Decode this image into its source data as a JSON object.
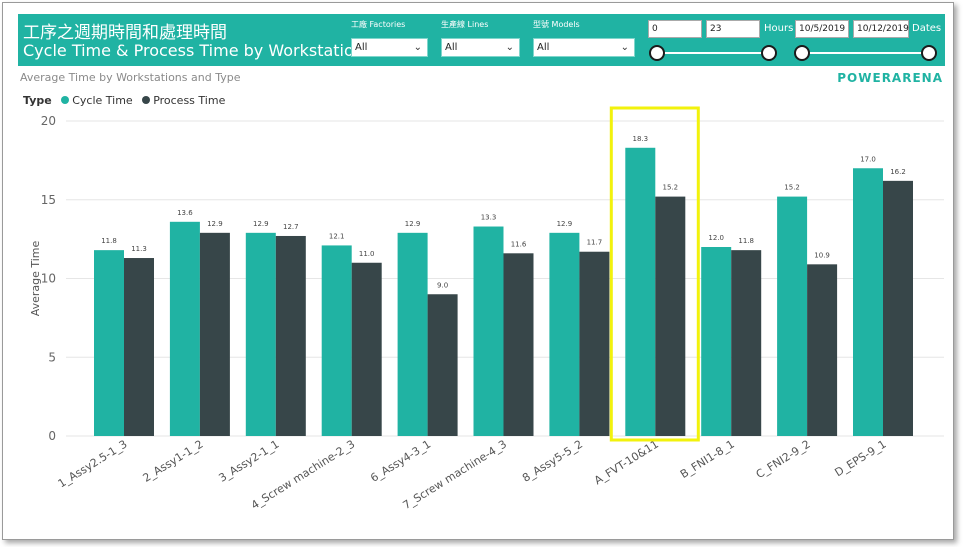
{
  "header": {
    "title_zh": "工序之週期時間和處理時間",
    "title_en": "Cycle Time & Process Time by Workstations",
    "filters": [
      {
        "label": "工廠 Factories",
        "value": "All"
      },
      {
        "label": "生產線 Lines",
        "value": "All"
      },
      {
        "label": "型號 Models",
        "value": "All"
      }
    ],
    "hours": {
      "from": "0",
      "to": "23",
      "label": "Hours"
    },
    "dates": {
      "from": "10/5/2019",
      "to": "10/12/2019",
      "label": "Dates"
    }
  },
  "subtitle": "Average Time by Workstations and Type",
  "brand": "POWERARENA",
  "legend": {
    "title": "Type"
  },
  "colors": {
    "cycle": "#20b3a3",
    "process": "#374649",
    "highlight": "#f2f20c",
    "header": "#20b3a3"
  },
  "chart_data": {
    "type": "bar",
    "title": "",
    "xlabel": "",
    "ylabel": "Average Time",
    "ylim": [
      0,
      20
    ],
    "yticks": [
      0,
      5,
      10,
      15,
      20
    ],
    "grid": true,
    "legend_position": "top-left",
    "categories": [
      "1_Assy2.5-1_3",
      "2_Assy1-1_2",
      "3_Assy2-1_1",
      "4_Screw machine-2_3",
      "6_Assy4-3_1",
      "7_Screw machine-4_3",
      "8_Assy5-5_2",
      "A_FVT-10&11",
      "B_FNI1-8_1",
      "C_FNI2-9_2",
      "D_EPS-9_1"
    ],
    "series": [
      {
        "name": "Cycle Time",
        "values": [
          11.8,
          13.6,
          12.9,
          12.1,
          12.9,
          13.3,
          12.9,
          18.3,
          12.0,
          15.2,
          17.0
        ]
      },
      {
        "name": "Process Time",
        "values": [
          11.3,
          12.9,
          12.7,
          11.0,
          9.0,
          11.6,
          11.7,
          15.2,
          11.8,
          10.9,
          16.2
        ]
      }
    ],
    "highlight_category": "A_FVT-10&11"
  }
}
